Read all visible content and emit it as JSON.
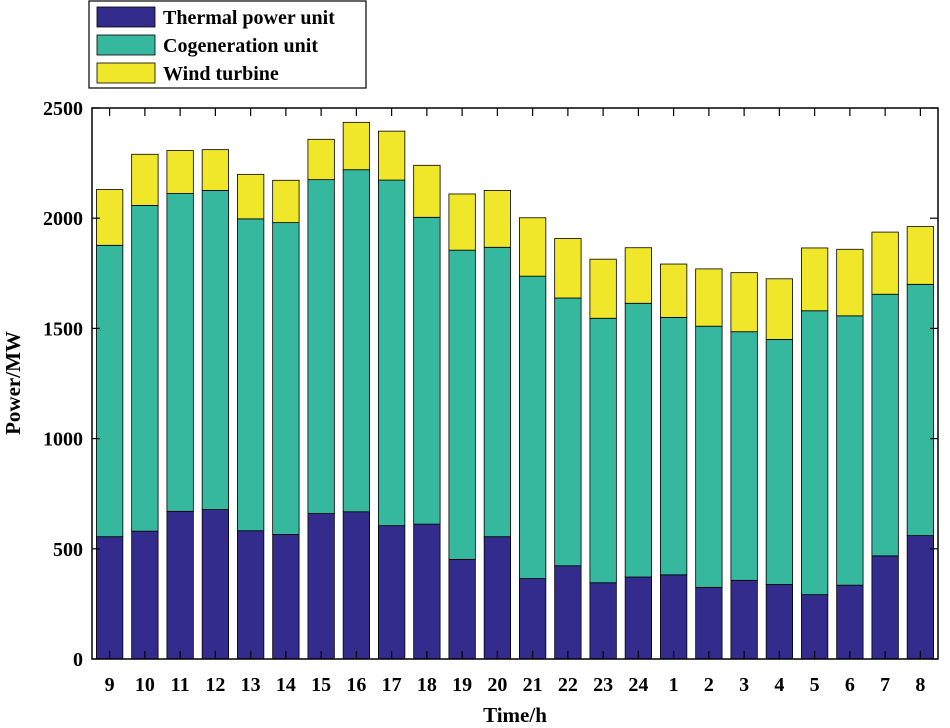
{
  "chart_data": {
    "type": "bar",
    "stacked": true,
    "title": "",
    "xlabel": "Time/h",
    "ylabel": "Power/MW",
    "ylim": [
      0,
      2500
    ],
    "yticks": [
      0,
      500,
      1000,
      1500,
      2000,
      2500
    ],
    "categories": [
      "9",
      "10",
      "11",
      "12",
      "13",
      "14",
      "15",
      "16",
      "17",
      "18",
      "19",
      "20",
      "21",
      "22",
      "23",
      "24",
      "1",
      "2",
      "3",
      "4",
      "5",
      "6",
      "7",
      "8"
    ],
    "legend_position": "top-left (outside plot)",
    "series": [
      {
        "name": "Thermal power unit",
        "color": "#332c8c",
        "values": [
          555,
          580,
          670,
          678,
          582,
          565,
          660,
          668,
          605,
          612,
          452,
          555,
          365,
          423,
          346,
          372,
          382,
          325,
          357,
          338,
          292,
          335,
          468,
          560
        ]
      },
      {
        "name": "Cogeneration unit",
        "color": "#35b89e",
        "values": [
          1322,
          1478,
          1442,
          1448,
          1415,
          1415,
          1515,
          1552,
          1568,
          1392,
          1403,
          1313,
          1372,
          1215,
          1200,
          1242,
          1168,
          1185,
          1128,
          1112,
          1288,
          1222,
          1187,
          1140
        ]
      },
      {
        "name": "Wind turbine",
        "color": "#f0e62a",
        "values": [
          253,
          232,
          195,
          185,
          202,
          192,
          183,
          215,
          222,
          236,
          255,
          258,
          265,
          270,
          268,
          252,
          242,
          260,
          268,
          275,
          285,
          302,
          282,
          262
        ]
      }
    ]
  }
}
